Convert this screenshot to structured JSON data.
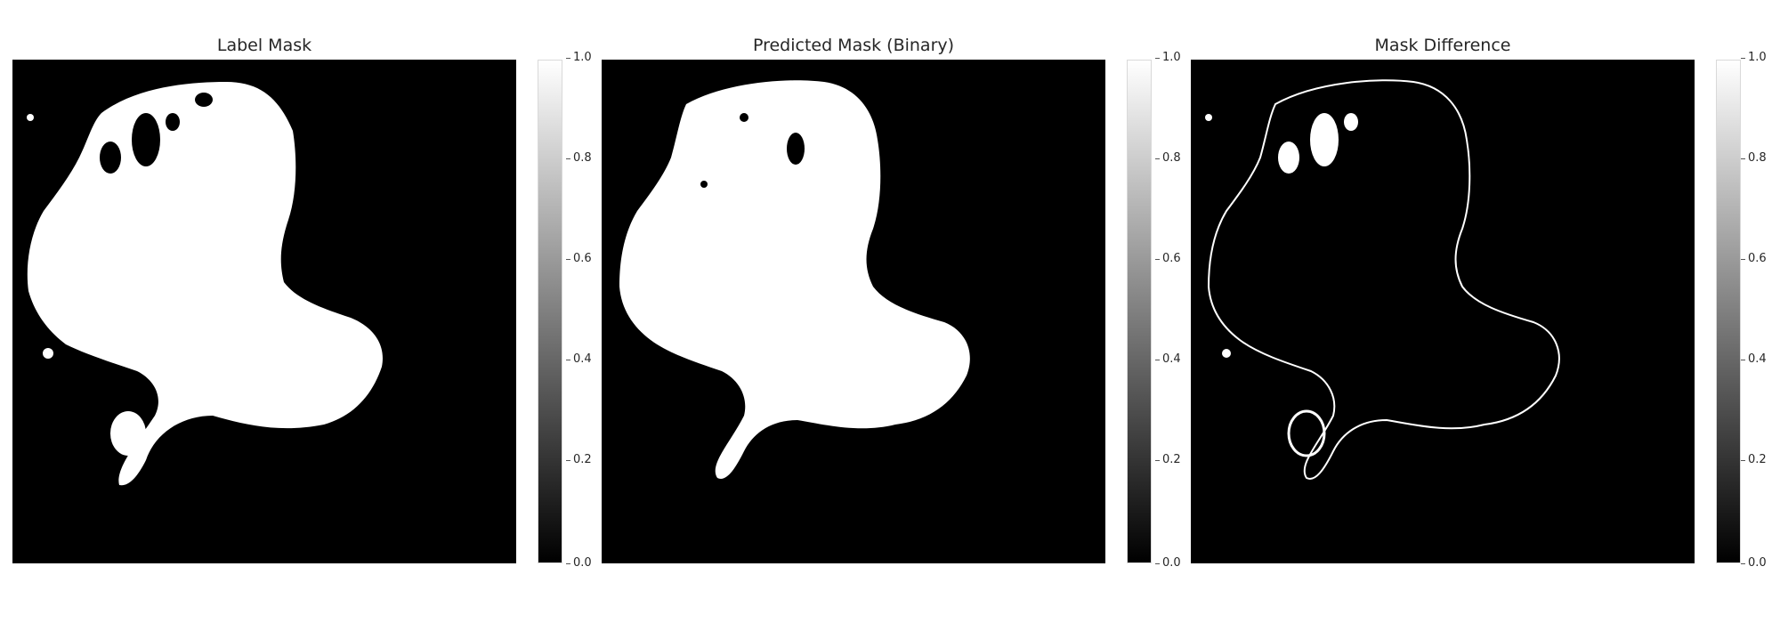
{
  "panels": [
    {
      "title": "Label Mask",
      "colorbar_ticks": [
        "1.0",
        "0.8",
        "0.6",
        "0.4",
        "0.2",
        "0.0"
      ]
    },
    {
      "title": "Predicted Mask (Binary)",
      "colorbar_ticks": [
        "1.0",
        "0.8",
        "0.6",
        "0.4",
        "0.2",
        "0.0"
      ]
    },
    {
      "title": "Mask Difference",
      "colorbar_ticks": [
        "1.0",
        "0.8",
        "0.6",
        "0.4",
        "0.2",
        "0.0"
      ]
    }
  ],
  "colormap": {
    "low": "#000000",
    "high": "#ffffff",
    "range": [
      0.0,
      1.0
    ]
  }
}
